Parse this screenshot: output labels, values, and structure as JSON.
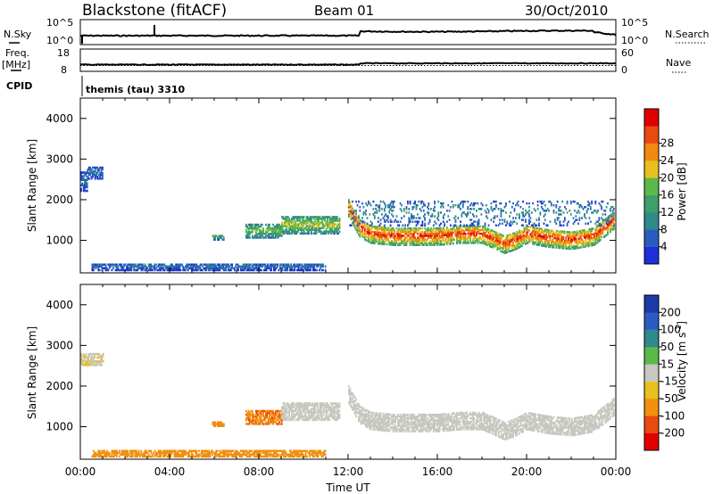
{
  "header": {
    "station": "Blackstone (fitACF)",
    "beam": "Beam 01",
    "date": "30/Oct/2010"
  },
  "top_panels": {
    "nsky_label": "N.Sky",
    "nsky_ticks": [
      "10^5",
      "10^0"
    ],
    "nsearch_label": "N.Search",
    "nsearch_ticks": [
      "10^5",
      "10^0"
    ],
    "freq_label": "Freq.",
    "freq_unit": "[MHz]",
    "freq_ticks": [
      "18",
      "8"
    ],
    "nave_label": "Nave",
    "nave_ticks": [
      "60",
      "0"
    ],
    "cpid_label": "CPID",
    "cpid_value": "themis (tau) 3310"
  },
  "colors": {
    "power_scale": [
      "#1c2fd8",
      "#2a5cc0",
      "#2f8a8a",
      "#3f9e6a",
      "#5cb84a",
      "#e8c020",
      "#f08a10",
      "#e84a10",
      "#e00000"
    ],
    "velocity_scale": [
      "#1c3aa8",
      "#2a5cc0",
      "#2f8a8a",
      "#5cb84a",
      "#c8c8c0",
      "#e8c020",
      "#f09010",
      "#e84a10",
      "#e00000"
    ]
  },
  "chart_data": [
    {
      "type": "heatmap",
      "name": "power",
      "ylabel": "Slant Range [km]",
      "yticks": [
        "1000",
        "2000",
        "3000",
        "4000"
      ],
      "ylim": [
        200,
        4500
      ],
      "xlim": [
        0,
        24
      ],
      "colorbar": {
        "label": "Power [dB]",
        "ticks": [
          "4",
          "8",
          "12",
          "16",
          "20",
          "24",
          "28"
        ],
        "range": [
          0,
          32
        ]
      },
      "echo_regions": [
        {
          "t0": 0.0,
          "t1": 0.3,
          "r0": 2200,
          "r1": 2700,
          "power": 6
        },
        {
          "t0": 0.3,
          "t1": 1.0,
          "r0": 2500,
          "r1": 2800,
          "power": 6
        },
        {
          "t0": 5.9,
          "t1": 6.4,
          "r0": 1000,
          "r1": 1150,
          "power": 12
        },
        {
          "t0": 7.4,
          "t1": 9.0,
          "r0": 1050,
          "r1": 1400,
          "power": 14
        },
        {
          "t0": 9.0,
          "t1": 11.6,
          "r0": 1150,
          "r1": 1600,
          "power": 16
        },
        {
          "t0": 12.0,
          "t1": 23.9,
          "r0": 850,
          "r1": 1350,
          "power": 24
        },
        {
          "t0": 12.0,
          "t1": 23.9,
          "r0": 1350,
          "r1": 2000,
          "power": 8
        },
        {
          "t0": 0.5,
          "t1": 11.0,
          "r0": 250,
          "r1": 450,
          "power": 6
        }
      ],
      "main_band_center_km": {
        "t": [
          12,
          12.5,
          13,
          14,
          15,
          16,
          17,
          18,
          19,
          19.5,
          20,
          21,
          22,
          23,
          23.9
        ],
        "r": [
          1800,
          1300,
          1150,
          1100,
          1100,
          1100,
          1150,
          1150,
          900,
          1000,
          1150,
          1050,
          1000,
          1100,
          1500
        ]
      }
    },
    {
      "type": "heatmap",
      "name": "velocity",
      "ylabel": "Slant Range [km]",
      "yticks": [
        "1000",
        "2000",
        "3000",
        "4000"
      ],
      "ylim": [
        200,
        4500
      ],
      "xlim": [
        0,
        24
      ],
      "xlabel": "Time UT",
      "xticks": [
        "00:00",
        "04:00",
        "08:00",
        "12:00",
        "16:00",
        "20:00",
        "00:00"
      ],
      "colorbar": {
        "label": "Velocity [m s-1]",
        "ticks": [
          "200",
          "100",
          "50",
          "15",
          "-15",
          "-50",
          "-100",
          "-200"
        ],
        "range": [
          -250,
          250
        ]
      },
      "echo_regions": [
        {
          "t0": 0.0,
          "t1": 1.0,
          "r0": 2500,
          "r1": 2800,
          "velocity": -10
        },
        {
          "t0": 5.9,
          "t1": 6.4,
          "r0": 1000,
          "r1": 1150,
          "velocity": -60
        },
        {
          "t0": 7.4,
          "t1": 9.0,
          "r0": 1050,
          "r1": 1400,
          "velocity": -70
        },
        {
          "t0": 9.0,
          "t1": 11.6,
          "r0": 1150,
          "r1": 1600,
          "velocity": 0
        },
        {
          "t0": 12.0,
          "t1": 23.9,
          "r0": 850,
          "r1": 1600,
          "velocity": 0
        },
        {
          "t0": 0.5,
          "t1": 11.0,
          "r0": 250,
          "r1": 450,
          "velocity": -60
        }
      ]
    }
  ]
}
